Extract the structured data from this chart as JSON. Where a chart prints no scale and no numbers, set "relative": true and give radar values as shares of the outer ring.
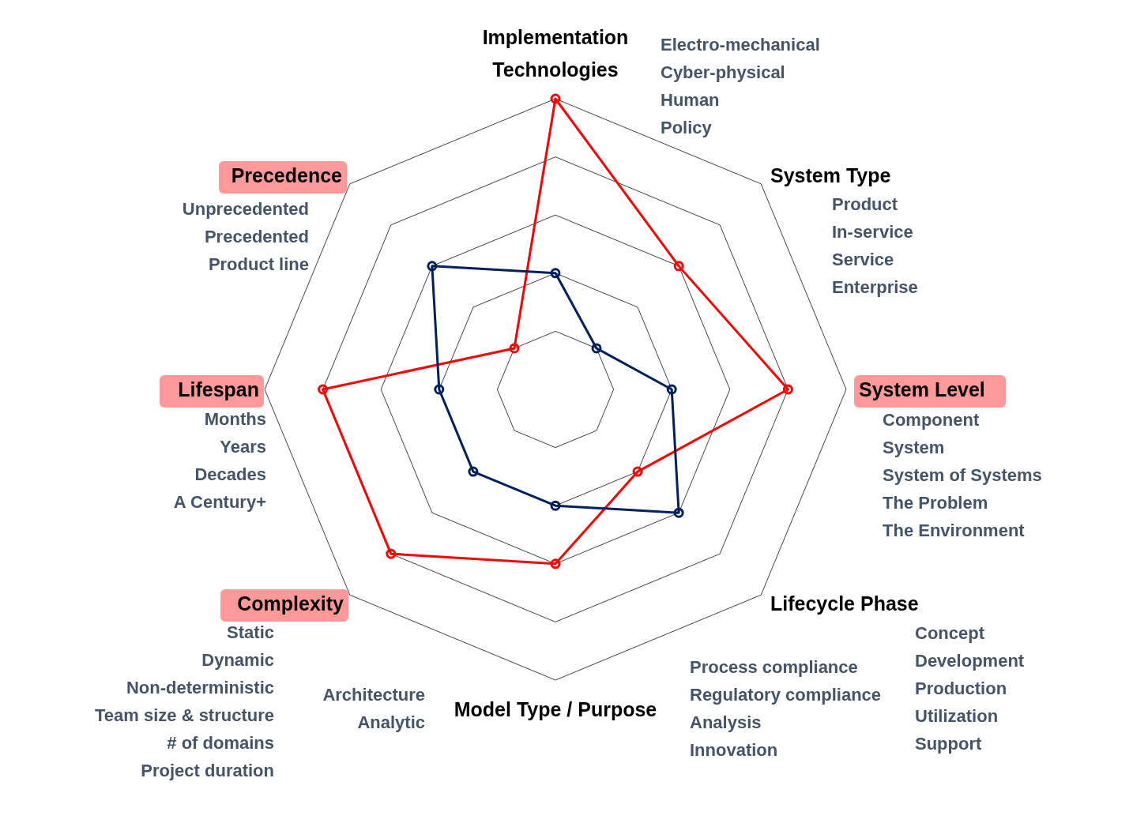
{
  "chart_data": {
    "type": "radar",
    "relative": true,
    "grid": true,
    "marker": "circle",
    "line_style": "solid",
    "categories": [
      "Implementation Technologies",
      "System Type",
      "System Level",
      "Lifecycle Phase",
      "Model Type / Purpose",
      "Complexity",
      "Lifespan",
      "Precedence"
    ],
    "series": [
      {
        "color": "#ff0000",
        "values": [
          1.0,
          0.6,
          0.8,
          0.4,
          0.6,
          0.8,
          0.8,
          0.2
        ]
      },
      {
        "color": "#002060",
        "values": [
          0.4,
          0.2,
          0.4,
          0.6,
          0.4,
          0.4,
          0.4,
          0.6
        ]
      }
    ],
    "annotations": [
      "Electro-mechanical\nCyber-physical\nHuman\nPolicy",
      "Product\nIn-service\nService\nEnterprise",
      "Component\nSystem\nSystem of Systems\nThe Problem\nThe Environment",
      "Concept\nDevelopment\nProduction\nUtilization\nSupport",
      "Process compliance\nRegulatory compliance\nAnalysis\nInnovation",
      "Architecture\nAnalytic",
      "Static\nDynamic\nNon-deterministic\nTeam size & structure\n# of domains\nProject duration",
      "Months\nYears\nDecades\nA Century+",
      "Unprecedented\nPrecedented\nProduct line"
    ]
  }
}
